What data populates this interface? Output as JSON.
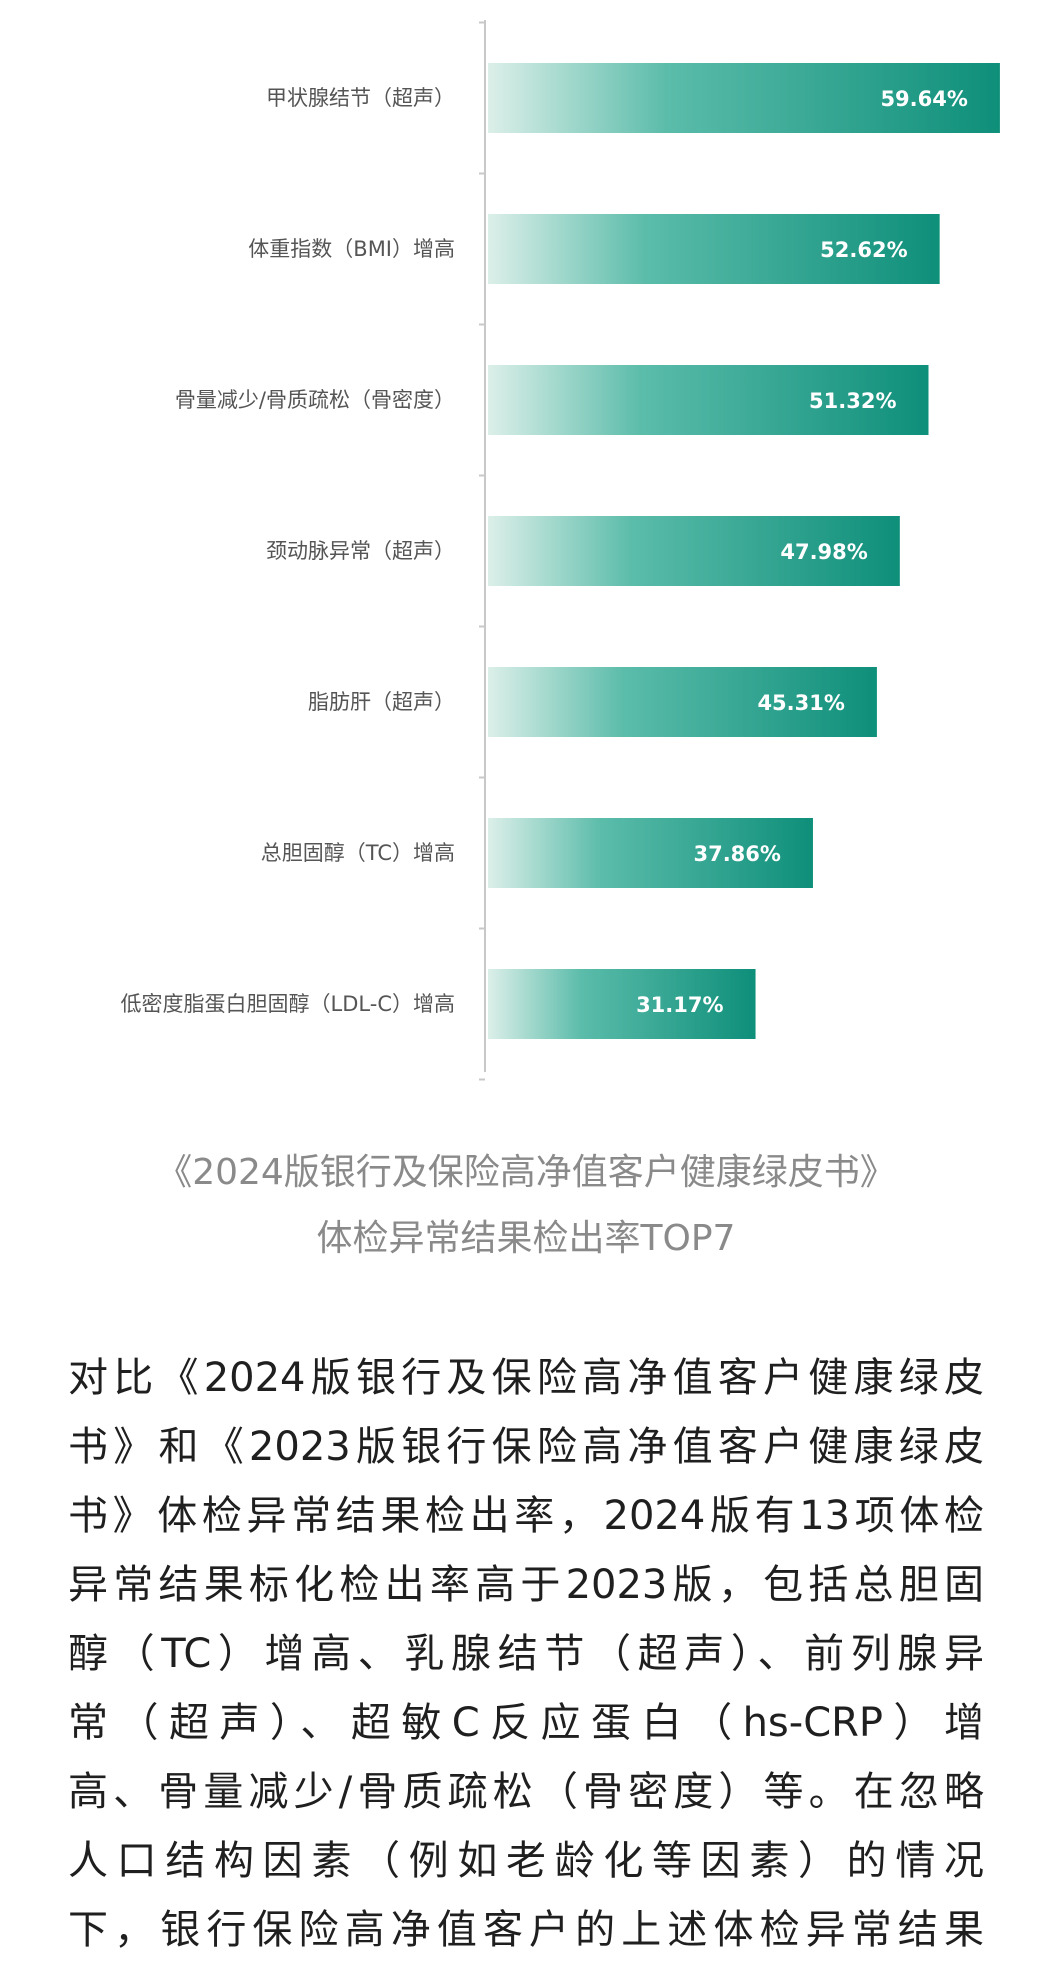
{
  "chart_data": {
    "type": "bar",
    "orientation": "horizontal",
    "categories": [
      "甲状腺结节（超声）",
      "体重指数（BMI）增高",
      "骨量减少/骨质疏松（骨密度）",
      "颈动脉异常（超声）",
      "脂肪肝（超声）",
      "总胆固醇（TC）增高",
      "低密度脂蛋白胆固醇（LDL-C）增高"
    ],
    "values": [
      59.64,
      52.62,
      51.32,
      47.98,
      45.31,
      37.86,
      31.17
    ],
    "value_labels": [
      "59.64%",
      "52.62%",
      "51.32%",
      "47.98%",
      "45.31%",
      "37.86%",
      "31.17%"
    ],
    "unit": "%",
    "xlim": [
      0,
      60
    ],
    "grid": false,
    "bar_color": "#0e8f7a",
    "bar_fade_color": "#d4ece6",
    "title": "",
    "xlabel": "",
    "ylabel": ""
  },
  "caption": {
    "line1": "《2024版银行及保险高净值客户健康绿皮书》",
    "line2": "体检异常结果检出率TOP7"
  },
  "paragraph": {
    "lines": [
      "对比《2024版银行及保险高净值客户健康绿皮",
      "书》和《2023版银行保险高净值客户健康绿皮",
      "书》体检异常结果检出率，2024版有13项体检",
      "异常结果标化检出率高于2023版，包括总胆固",
      "醇（TC）增高、乳腺结节（超声）、前列腺异",
      "常（超声）、超敏C反应蛋白（hs-CRP）增",
      "高、骨量减少/骨质疏松（骨密度）等。在忽略",
      "人口结构因素（例如老龄化等因素）的情况",
      "下，银行保险高净值客户的上述体检异常结果"
    ]
  }
}
